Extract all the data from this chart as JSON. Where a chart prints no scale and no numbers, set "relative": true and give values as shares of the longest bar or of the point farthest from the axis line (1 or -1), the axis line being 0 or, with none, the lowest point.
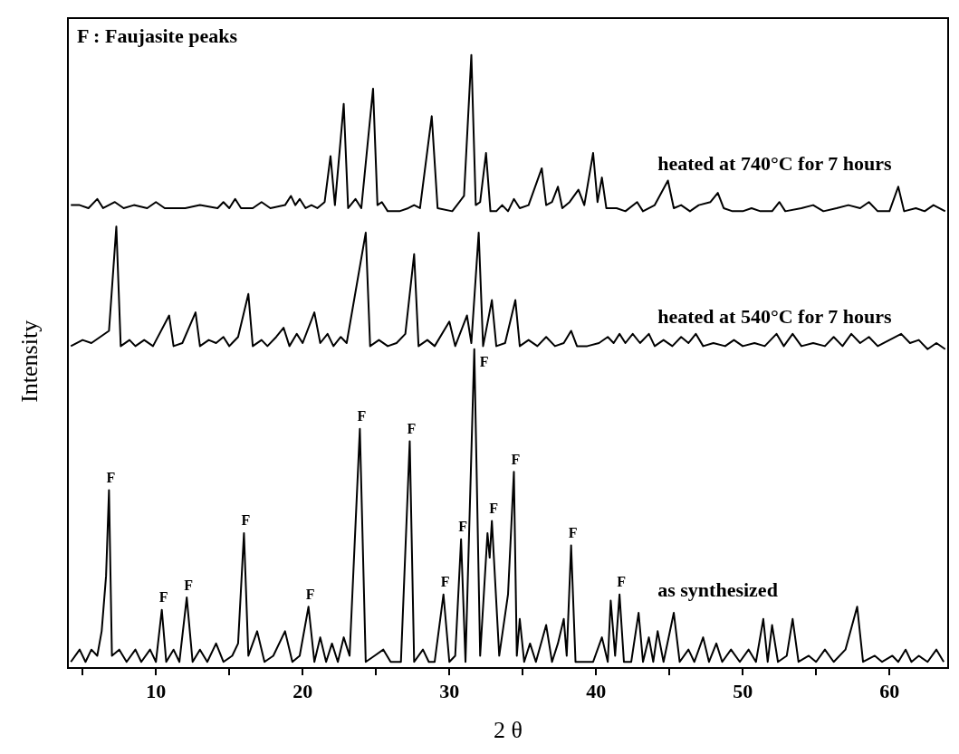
{
  "chart_data": {
    "type": "line",
    "relative": true,
    "xlabel": "2 θ",
    "ylabel": "Intensity",
    "xlim": [
      4,
      64
    ],
    "xticks": [
      {
        "value": 5,
        "label": null
      },
      10,
      {
        "value": 15,
        "label": null
      },
      20,
      {
        "value": 25,
        "label": null
      },
      30,
      {
        "value": 35,
        "label": null
      },
      40,
      {
        "value": 45,
        "label": null
      },
      50,
      {
        "value": 55,
        "label": null
      },
      60
    ],
    "marker": "none",
    "annotations": [
      "F : Faujasite peaks",
      {
        "text": "F",
        "x": 6.8,
        "y": 0.29
      },
      {
        "text": "F",
        "x": 10.4,
        "y": 0.095
      },
      {
        "text": "F",
        "x": 12.1,
        "y": 0.115
      },
      {
        "text": "F",
        "x": 16.0,
        "y": 0.22
      },
      {
        "text": "F",
        "x": 20.4,
        "y": 0.1
      },
      {
        "text": "F",
        "x": 23.9,
        "y": 0.39
      },
      {
        "text": "F",
        "x": 27.3,
        "y": 0.37
      },
      {
        "text": "F",
        "x": 29.6,
        "y": 0.12
      },
      {
        "text": "F",
        "x": 30.8,
        "y": 0.21
      },
      {
        "text": "F",
        "x": 31.7,
        "y": 0.52
      },
      {
        "text": "F",
        "x": 32.9,
        "y": 0.24
      },
      {
        "text": "F",
        "x": 34.4,
        "y": 0.32
      },
      {
        "text": "F",
        "x": 38.3,
        "y": 0.2
      },
      {
        "text": "F",
        "x": 41.6,
        "y": 0.12
      }
    ],
    "series": [
      {
        "name": "heated at 740°C for 7 hours",
        "color": "#000000",
        "x": [
          4.2,
          4.8,
          5.4,
          6.0,
          6.4,
          7.2,
          7.8,
          8.5,
          9.4,
          10.0,
          10.6,
          12.0,
          13.0,
          14.2,
          14.6,
          15.0,
          15.4,
          15.8,
          16.6,
          17.2,
          17.8,
          18.8,
          19.2,
          19.5,
          19.8,
          20.2,
          20.6,
          21.0,
          21.5,
          21.9,
          22.2,
          22.8,
          23.1,
          23.6,
          24.0,
          24.8,
          25.1,
          25.4,
          25.8,
          26.6,
          27.2,
          27.6,
          28.0,
          28.8,
          29.2,
          30.2,
          31.0,
          31.5,
          31.8,
          32.1,
          32.5,
          32.8,
          33.2,
          33.6,
          34.0,
          34.4,
          34.8,
          35.4,
          36.3,
          36.6,
          37.0,
          37.4,
          37.7,
          38.2,
          38.8,
          39.2,
          39.8,
          40.1,
          40.4,
          40.7,
          41.4,
          42.0,
          42.8,
          43.2,
          44.0,
          44.9,
          45.3,
          45.8,
          46.4,
          47.0,
          47.8,
          48.3,
          48.7,
          49.3,
          50.0,
          50.6,
          51.2,
          52.0,
          52.5,
          52.9,
          54.0,
          54.8,
          55.5,
          56.4,
          57.2,
          58.0,
          58.6,
          59.2,
          60.0,
          60.6,
          61.0,
          61.8,
          62.4,
          63.0,
          63.8
        ],
        "values": [
          0.755,
          0.755,
          0.75,
          0.765,
          0.75,
          0.76,
          0.75,
          0.755,
          0.75,
          0.76,
          0.75,
          0.75,
          0.755,
          0.75,
          0.76,
          0.75,
          0.765,
          0.75,
          0.75,
          0.76,
          0.75,
          0.755,
          0.77,
          0.755,
          0.765,
          0.75,
          0.755,
          0.75,
          0.76,
          0.835,
          0.755,
          0.92,
          0.75,
          0.765,
          0.75,
          0.945,
          0.755,
          0.76,
          0.745,
          0.745,
          0.75,
          0.755,
          0.75,
          0.9,
          0.75,
          0.745,
          0.77,
          1.0,
          0.755,
          0.76,
          0.84,
          0.745,
          0.745,
          0.755,
          0.745,
          0.765,
          0.75,
          0.755,
          0.815,
          0.755,
          0.76,
          0.785,
          0.75,
          0.76,
          0.78,
          0.755,
          0.84,
          0.76,
          0.8,
          0.75,
          0.75,
          0.745,
          0.76,
          0.745,
          0.755,
          0.795,
          0.75,
          0.755,
          0.745,
          0.755,
          0.76,
          0.775,
          0.75,
          0.745,
          0.745,
          0.75,
          0.745,
          0.745,
          0.76,
          0.745,
          0.75,
          0.755,
          0.745,
          0.75,
          0.755,
          0.75,
          0.76,
          0.745,
          0.745,
          0.785,
          0.745,
          0.75,
          0.745,
          0.755,
          0.745
        ]
      },
      {
        "name": "heated at 540°C for 7 hours",
        "color": "#000000",
        "x": [
          4.2,
          5.0,
          5.6,
          6.2,
          6.8,
          7.3,
          7.6,
          8.2,
          8.6,
          9.2,
          9.8,
          10.9,
          11.2,
          11.8,
          12.7,
          13.0,
          13.6,
          14.1,
          14.6,
          15.0,
          15.6,
          16.3,
          16.6,
          17.2,
          17.6,
          18.2,
          18.7,
          19.1,
          19.6,
          20.0,
          20.8,
          21.2,
          21.7,
          22.1,
          22.6,
          23.0,
          24.3,
          24.6,
          25.2,
          25.8,
          26.4,
          27.0,
          27.6,
          27.9,
          28.5,
          29.0,
          30.0,
          30.4,
          31.2,
          31.5,
          32.0,
          32.3,
          32.9,
          33.2,
          33.8,
          34.5,
          34.8,
          35.4,
          36.0,
          36.6,
          37.2,
          37.8,
          38.3,
          38.7,
          39.4,
          40.2,
          40.8,
          41.2,
          41.6,
          42.0,
          42.5,
          43.0,
          43.6,
          44.0,
          44.6,
          45.2,
          45.8,
          46.3,
          46.8,
          47.3,
          48.0,
          48.8,
          49.4,
          50.0,
          50.8,
          51.5,
          52.3,
          52.8,
          53.4,
          54.0,
          54.8,
          55.6,
          56.2,
          56.8,
          57.4,
          58.0,
          58.6,
          59.2,
          60.0,
          60.8,
          61.4,
          62.0,
          62.6,
          63.2,
          63.8
        ],
        "values": [
          0.525,
          0.535,
          0.53,
          0.54,
          0.55,
          0.72,
          0.525,
          0.535,
          0.525,
          0.535,
          0.525,
          0.575,
          0.525,
          0.53,
          0.58,
          0.525,
          0.535,
          0.53,
          0.54,
          0.525,
          0.54,
          0.61,
          0.525,
          0.535,
          0.525,
          0.54,
          0.555,
          0.525,
          0.545,
          0.53,
          0.58,
          0.53,
          0.545,
          0.525,
          0.54,
          0.53,
          0.71,
          0.525,
          0.535,
          0.525,
          0.53,
          0.545,
          0.675,
          0.525,
          0.535,
          0.525,
          0.565,
          0.525,
          0.575,
          0.53,
          0.71,
          0.525,
          0.6,
          0.525,
          0.53,
          0.6,
          0.525,
          0.535,
          0.525,
          0.54,
          0.525,
          0.53,
          0.55,
          0.525,
          0.525,
          0.53,
          0.54,
          0.53,
          0.545,
          0.53,
          0.545,
          0.53,
          0.545,
          0.525,
          0.535,
          0.525,
          0.54,
          0.53,
          0.545,
          0.525,
          0.53,
          0.525,
          0.535,
          0.525,
          0.53,
          0.525,
          0.545,
          0.525,
          0.545,
          0.525,
          0.53,
          0.525,
          0.54,
          0.525,
          0.545,
          0.53,
          0.54,
          0.525,
          0.535,
          0.545,
          0.53,
          0.535,
          0.52,
          0.53,
          0.52
        ]
      },
      {
        "name": "as synthesized",
        "color": "#000000",
        "x": [
          4.2,
          4.8,
          5.2,
          5.6,
          6.0,
          6.3,
          6.6,
          6.8,
          7.0,
          7.5,
          8.0,
          8.6,
          9.0,
          9.6,
          10.0,
          10.4,
          10.7,
          11.2,
          11.6,
          12.1,
          12.5,
          13.0,
          13.5,
          14.1,
          14.6,
          15.2,
          15.6,
          16.0,
          16.3,
          16.9,
          17.4,
          18.0,
          18.8,
          19.3,
          19.8,
          20.4,
          20.8,
          21.2,
          21.6,
          22.0,
          22.4,
          22.8,
          23.2,
          23.9,
          24.3,
          24.9,
          25.5,
          26.0,
          26.7,
          27.3,
          27.6,
          28.2,
          28.6,
          29.0,
          29.6,
          30.0,
          30.4,
          30.8,
          31.1,
          31.7,
          32.1,
          32.6,
          32.75,
          32.9,
          33.4,
          34.0,
          34.4,
          34.6,
          34.8,
          35.1,
          35.5,
          35.9,
          36.6,
          37.0,
          37.4,
          37.8,
          38.0,
          38.3,
          38.6,
          39.2,
          39.8,
          40.4,
          40.8,
          41.0,
          41.3,
          41.6,
          41.9,
          42.4,
          42.9,
          43.2,
          43.6,
          43.9,
          44.2,
          44.6,
          45.3,
          45.7,
          46.3,
          46.7,
          47.3,
          47.7,
          48.2,
          48.6,
          49.2,
          49.8,
          50.4,
          50.9,
          51.4,
          51.7,
          52.0,
          52.4,
          53.0,
          53.4,
          53.8,
          54.5,
          55.0,
          55.6,
          56.2,
          57.0,
          57.8,
          58.2,
          59.0,
          59.5,
          60.2,
          60.6,
          61.1,
          61.5,
          62.0,
          62.6,
          63.2,
          63.7
        ],
        "values": [
          0.01,
          0.03,
          0.01,
          0.03,
          0.02,
          0.06,
          0.15,
          0.29,
          0.02,
          0.03,
          0.01,
          0.03,
          0.01,
          0.03,
          0.01,
          0.095,
          0.01,
          0.03,
          0.01,
          0.115,
          0.01,
          0.03,
          0.01,
          0.04,
          0.01,
          0.02,
          0.04,
          0.22,
          0.02,
          0.06,
          0.01,
          0.02,
          0.06,
          0.01,
          0.02,
          0.1,
          0.01,
          0.05,
          0.01,
          0.04,
          0.01,
          0.05,
          0.02,
          0.39,
          0.01,
          0.02,
          0.03,
          0.01,
          0.01,
          0.37,
          0.01,
          0.03,
          0.01,
          0.01,
          0.12,
          0.01,
          0.02,
          0.21,
          0.01,
          0.52,
          0.02,
          0.22,
          0.18,
          0.24,
          0.02,
          0.12,
          0.32,
          0.02,
          0.08,
          0.01,
          0.04,
          0.01,
          0.07,
          0.01,
          0.04,
          0.08,
          0.02,
          0.2,
          0.01,
          0.01,
          0.01,
          0.05,
          0.01,
          0.11,
          0.02,
          0.12,
          0.01,
          0.01,
          0.09,
          0.01,
          0.05,
          0.01,
          0.06,
          0.01,
          0.09,
          0.01,
          0.03,
          0.01,
          0.05,
          0.01,
          0.04,
          0.01,
          0.03,
          0.01,
          0.03,
          0.01,
          0.08,
          0.01,
          0.07,
          0.01,
          0.02,
          0.08,
          0.01,
          0.02,
          0.01,
          0.03,
          0.01,
          0.03,
          0.1,
          0.01,
          0.02,
          0.01,
          0.02,
          0.01,
          0.03,
          0.01,
          0.02,
          0.01,
          0.03,
          0.01
        ]
      }
    ]
  }
}
